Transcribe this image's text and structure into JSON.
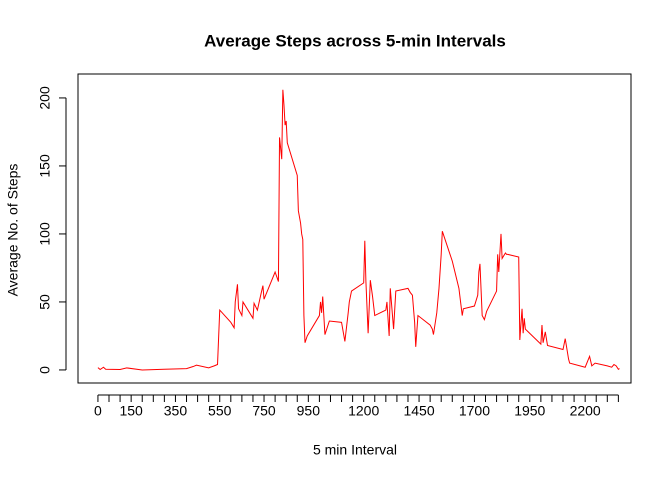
{
  "chart_data": {
    "type": "line",
    "title": "Average Steps across 5-min Intervals",
    "xlabel": "5 min Interval",
    "ylabel": "Average No. of Steps",
    "color": "red",
    "x": [
      0,
      10,
      25,
      35,
      100,
      130,
      200,
      300,
      400,
      430,
      445,
      500,
      525,
      540,
      550,
      600,
      615,
      620,
      630,
      635,
      650,
      655,
      700,
      705,
      720,
      735,
      745,
      750,
      800,
      815,
      820,
      830,
      835,
      840,
      845,
      850,
      855,
      900,
      905,
      915,
      920,
      925,
      930,
      935,
      945,
      1000,
      1005,
      1010,
      1015,
      1025,
      1045,
      1100,
      1115,
      1130,
      1135,
      1145,
      1200,
      1205,
      1210,
      1220,
      1230,
      1240,
      1250,
      1300,
      1305,
      1315,
      1320,
      1335,
      1345,
      1400,
      1410,
      1420,
      1430,
      1435,
      1445,
      1500,
      1510,
      1515,
      1530,
      1540,
      1550,
      1555,
      1600,
      1630,
      1645,
      1650,
      1700,
      1715,
      1720,
      1725,
      1735,
      1745,
      1755,
      1800,
      1805,
      1810,
      1820,
      1825,
      1840,
      1845,
      1850,
      1900,
      1905,
      1915,
      1920,
      1925,
      1930,
      2000,
      2005,
      2010,
      2020,
      2030,
      2100,
      2110,
      2115,
      2125,
      2130,
      2200,
      2215,
      2220,
      2230,
      2245,
      2300,
      2320,
      2330,
      2340,
      2350,
      2355
    ],
    "values": [
      1.7,
      0.3,
      2,
      0.5,
      0.3,
      1.5,
      0,
      0.5,
      1,
      2.5,
      3.5,
      1.5,
      3,
      4,
      44,
      35,
      31,
      50,
      63,
      45,
      40,
      50,
      38,
      49,
      44,
      55,
      62,
      52,
      72,
      65,
      171,
      155,
      206,
      195,
      180,
      183,
      167,
      143,
      117,
      108,
      100,
      96,
      40,
      20,
      25,
      40,
      50,
      42,
      54,
      26,
      36,
      35,
      21,
      42,
      50,
      58,
      64,
      95,
      65,
      27,
      66,
      54,
      40,
      44,
      50,
      25,
      60,
      30,
      58,
      60,
      57,
      55,
      35,
      17,
      40,
      33,
      30,
      26,
      42,
      60,
      85,
      102,
      80,
      60,
      40,
      45,
      47,
      55,
      72,
      78,
      40,
      37,
      43,
      58,
      85,
      72,
      100,
      82,
      86,
      85,
      85,
      83,
      22,
      45,
      27,
      38,
      30,
      19,
      33,
      20,
      28,
      18,
      15,
      23,
      18,
      8,
      5,
      2,
      8,
      10,
      3,
      5,
      3,
      2,
      4,
      3,
      0.5,
      1
    ],
    "xlim": [
      -90,
      2407
    ],
    "ylim": [
      -9.6,
      217.6
    ],
    "xticks": [
      0,
      150,
      350,
      550,
      750,
      950,
      1200,
      1450,
      1700,
      1950,
      2200
    ],
    "xminorticks": [
      50,
      100,
      200,
      250,
      300,
      400,
      450,
      500,
      600,
      650,
      700,
      800,
      850,
      900,
      1000,
      1050,
      1100,
      1150,
      1250,
      1300,
      1350,
      1400,
      1500,
      1550,
      1600,
      1650,
      1750,
      1800,
      1850,
      1900,
      2000,
      2050,
      2100,
      2150,
      2250,
      2300,
      2350
    ],
    "yticks": [
      0,
      50,
      100,
      150,
      200
    ]
  }
}
